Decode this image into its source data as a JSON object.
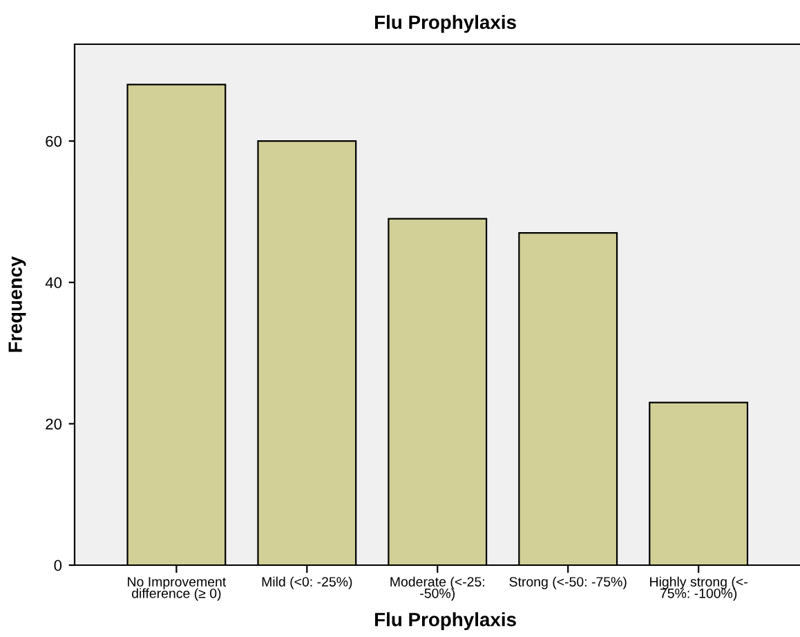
{
  "chart_data": {
    "type": "bar",
    "title": "Flu Prophylaxis",
    "xlabel": "Flu Prophylaxis",
    "ylabel": "Frequency",
    "categories": [
      "No Improvement\ndifference (≥ 0)",
      "Mild (<0: -25%)",
      "Moderate (<-25:\n-50%)",
      "Strong (<-50: -75%)",
      "Highly strong (<-\n75%: -100%)"
    ],
    "values": [
      68,
      60,
      49,
      47,
      23
    ],
    "color": "#d3d097",
    "ylim": [
      0,
      73.7
    ],
    "yticks": [
      0,
      20,
      40,
      60
    ],
    "grid": false,
    "legend": false
  }
}
